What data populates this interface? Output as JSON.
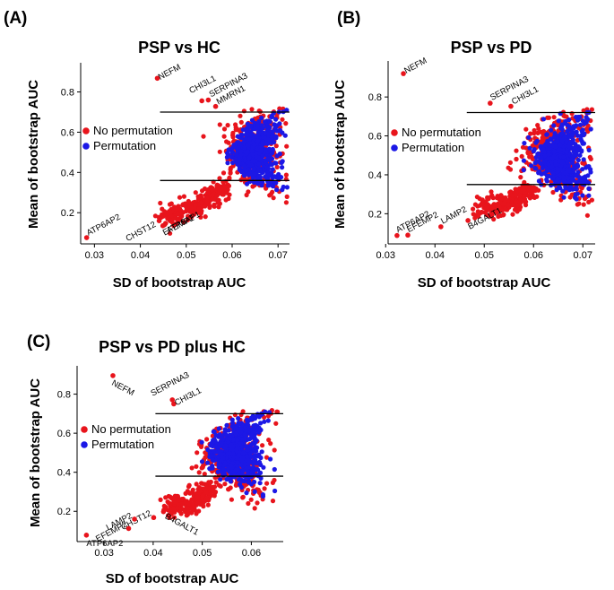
{
  "figure": {
    "point_colors": {
      "no_permutation": "#e8141c",
      "permutation": "#1c18e6"
    },
    "line_color": "#000000"
  },
  "chart_data": [
    {
      "type": "scatter",
      "panel_label": "(A)",
      "title": "PSP vs HC",
      "xlabel": "SD of bootstrap AUC",
      "ylabel": "Mean of bootstrap AUC",
      "xlim": [
        0.027,
        0.0725
      ],
      "ylim": [
        0.045,
        0.945
      ],
      "xticks": [
        {
          "v": 0.03,
          "label": "0.03"
        },
        {
          "v": 0.04,
          "label": "0.04"
        },
        {
          "v": 0.05,
          "label": "0.05"
        },
        {
          "v": 0.06,
          "label": "0.06"
        },
        {
          "v": 0.07,
          "label": "0.07"
        }
      ],
      "yticks": [
        {
          "v": 0.2,
          "label": "0.2"
        },
        {
          "v": 0.4,
          "label": "0.4"
        },
        {
          "v": 0.6,
          "label": "0.6"
        },
        {
          "v": 0.8,
          "label": "0.8"
        }
      ],
      "hlines": [
        0.7,
        0.36
      ],
      "legend": {
        "position": "left-middle",
        "items": [
          {
            "label": "No permutation",
            "color_key": "no_permutation"
          },
          {
            "label": "Permutation",
            "color_key": "permutation"
          }
        ]
      },
      "cloud": {
        "no_permutation": {
          "tail": [
            [
              0.0455,
              0.182
            ],
            [
              0.048,
              0.196
            ],
            [
              0.051,
              0.222
            ],
            [
              0.054,
              0.252
            ],
            [
              0.0565,
              0.29
            ],
            [
              0.0585,
              0.335
            ]
          ],
          "center": [
            0.064,
            0.51
          ],
          "spread": [
            0.0036,
            0.105
          ],
          "n": 640
        },
        "permutation": {
          "center": [
            0.0645,
            0.5
          ],
          "spread": [
            0.0023,
            0.085
          ],
          "n": 560
        }
      },
      "annotated_points": [
        {
          "label": "NEFM",
          "x": 0.0437,
          "y": 0.868,
          "rot": -28,
          "anchor": "start",
          "dx": 3,
          "dy": 2
        },
        {
          "label": "CHI3L1",
          "x": 0.0534,
          "y": 0.756,
          "rot": -28,
          "anchor": "start",
          "dx": -12,
          "dy": -8
        },
        {
          "label": "SERPINA3",
          "x": 0.0548,
          "y": 0.76,
          "rot": -28,
          "anchor": "start",
          "dx": 3,
          "dy": -3
        },
        {
          "label": "MMRN1",
          "x": 0.0564,
          "y": 0.728,
          "rot": -28,
          "anchor": "start",
          "dx": 3,
          "dy": -2
        },
        {
          "label": "ATP6AP2",
          "x": 0.0283,
          "y": 0.076,
          "rot": -28,
          "anchor": "start",
          "dx": 2,
          "dy": -2
        },
        {
          "label": "CHST12",
          "x": 0.0441,
          "y": 0.16,
          "rot": -28,
          "anchor": "end",
          "dx": -3,
          "dy": 6
        },
        {
          "label": "ATP6AP1",
          "x": 0.0455,
          "y": 0.147,
          "rot": -28,
          "anchor": "start",
          "dx": 3,
          "dy": 11
        },
        {
          "label": "EFEMP2",
          "x": 0.0449,
          "y": 0.135,
          "rot": -28,
          "anchor": "start",
          "dx": 2,
          "dy": 11
        }
      ]
    },
    {
      "type": "scatter",
      "panel_label": "(B)",
      "title": "PSP vs PD",
      "xlabel": "SD of bootstrap AUC",
      "ylabel": "Mean of bootstrap AUC",
      "xlim": [
        0.0305,
        0.0725
      ],
      "ylim": [
        0.045,
        0.985
      ],
      "xticks": [
        {
          "v": 0.03,
          "label": "0.03"
        },
        {
          "v": 0.04,
          "label": "0.04"
        },
        {
          "v": 0.05,
          "label": "0.05"
        },
        {
          "v": 0.06,
          "label": "0.06"
        },
        {
          "v": 0.07,
          "label": "0.07"
        }
      ],
      "yticks": [
        {
          "v": 0.2,
          "label": "0.2"
        },
        {
          "v": 0.4,
          "label": "0.4"
        },
        {
          "v": 0.6,
          "label": "0.6"
        },
        {
          "v": 0.8,
          "label": "0.8"
        }
      ],
      "hlines": [
        0.72,
        0.35
      ],
      "legend": {
        "position": "left-middle",
        "items": [
          {
            "label": "No permutation",
            "color_key": "no_permutation"
          },
          {
            "label": "Permutation",
            "color_key": "permutation"
          }
        ]
      },
      "cloud": {
        "no_permutation": {
          "tail": [
            [
              0.0495,
              0.23
            ],
            [
              0.052,
              0.238
            ],
            [
              0.055,
              0.256
            ],
            [
              0.0575,
              0.29
            ],
            [
              0.059,
              0.33
            ]
          ],
          "center": [
            0.064,
            0.5
          ],
          "spread": [
            0.0035,
            0.11
          ],
          "n": 640
        },
        "permutation": {
          "center": [
            0.0648,
            0.49
          ],
          "spread": [
            0.0024,
            0.09
          ],
          "n": 560
        }
      },
      "annotated_points": [
        {
          "label": "NEFM",
          "x": 0.0336,
          "y": 0.92,
          "rot": -28,
          "anchor": "start",
          "dx": 3,
          "dy": 0
        },
        {
          "label": "SERPINA3",
          "x": 0.0512,
          "y": 0.768,
          "rot": -28,
          "anchor": "start",
          "dx": 2,
          "dy": -3
        },
        {
          "label": "CHI3L1",
          "x": 0.0554,
          "y": 0.752,
          "rot": -28,
          "anchor": "start",
          "dx": 3,
          "dy": -2
        },
        {
          "label": "ATP6AP2",
          "x": 0.0323,
          "y": 0.088,
          "rot": -28,
          "anchor": "start",
          "dx": 1,
          "dy": -3
        },
        {
          "label": "EFEMP2",
          "x": 0.0345,
          "y": 0.09,
          "rot": -28,
          "anchor": "start",
          "dx": 1,
          "dy": -3
        },
        {
          "label": "LAMP2",
          "x": 0.0412,
          "y": 0.133,
          "rot": -28,
          "anchor": "start",
          "dx": 2,
          "dy": -3
        },
        {
          "label": "B4GALT1",
          "x": 0.0467,
          "y": 0.165,
          "rot": -28,
          "anchor": "start",
          "dx": 2,
          "dy": 10
        }
      ],
      "extra_points": [
        [
          0.0478,
          0.198
        ],
        [
          0.0488,
          0.186
        ],
        [
          0.0481,
          0.178
        ]
      ]
    },
    {
      "type": "scatter",
      "panel_label": "(C)",
      "title": "PSP vs PD plus HC",
      "xlabel": "SD of bootstrap AUC",
      "ylabel": "Mean of bootstrap AUC",
      "xlim": [
        0.0245,
        0.0665
      ],
      "ylim": [
        0.045,
        0.945
      ],
      "xticks": [
        {
          "v": 0.03,
          "label": "0.03"
        },
        {
          "v": 0.04,
          "label": "0.04"
        },
        {
          "v": 0.05,
          "label": "0.05"
        },
        {
          "v": 0.06,
          "label": "0.06"
        }
      ],
      "yticks": [
        {
          "v": 0.2,
          "label": "0.2"
        },
        {
          "v": 0.4,
          "label": "0.4"
        },
        {
          "v": 0.6,
          "label": "0.6"
        },
        {
          "v": 0.8,
          "label": "0.8"
        }
      ],
      "hlines": [
        0.7,
        0.38
      ],
      "legend": {
        "position": "left-middle",
        "items": [
          {
            "label": "No permutation",
            "color_key": "no_permutation"
          },
          {
            "label": "Permutation",
            "color_key": "permutation"
          }
        ]
      },
      "cloud": {
        "no_permutation": {
          "tail": [
            [
              0.0428,
              0.225
            ],
            [
              0.045,
              0.23
            ],
            [
              0.048,
              0.25
            ],
            [
              0.05,
              0.285
            ],
            [
              0.0515,
              0.33
            ]
          ],
          "center": [
            0.0555,
            0.49
          ],
          "spread": [
            0.0032,
            0.105
          ],
          "n": 620
        },
        "permutation": {
          "center": [
            0.0562,
            0.5
          ],
          "spread": [
            0.0023,
            0.085
          ],
          "n": 560
        }
      },
      "annotated_points": [
        {
          "label": "NEFM",
          "x": 0.0318,
          "y": 0.895,
          "rot": 28,
          "anchor": "start",
          "dx": -2,
          "dy": 10
        },
        {
          "label": "SERPINA3",
          "x": 0.0439,
          "y": 0.771,
          "rot": -28,
          "anchor": "start",
          "dx": -22,
          "dy": -4
        },
        {
          "label": "CHI3L1",
          "x": 0.0442,
          "y": 0.75,
          "rot": -28,
          "anchor": "start",
          "dx": 3,
          "dy": 2
        },
        {
          "label": "CHST12",
          "x": 0.0401,
          "y": 0.168,
          "rot": -28,
          "anchor": "end",
          "dx": -2,
          "dy": -3
        },
        {
          "label": "LAMP2",
          "x": 0.0362,
          "y": 0.16,
          "rot": -28,
          "anchor": "end",
          "dx": -2,
          "dy": -2
        },
        {
          "label": "EFEMP2",
          "x": 0.035,
          "y": 0.112,
          "rot": -28,
          "anchor": "end",
          "dx": -1,
          "dy": -3
        },
        {
          "label": "ATP6AP2",
          "x": 0.0264,
          "y": 0.078,
          "rot": 0,
          "anchor": "start",
          "dx": 0,
          "dy": 12
        },
        {
          "label": "B4GALT1",
          "x": 0.0421,
          "y": 0.198,
          "rot": 28,
          "anchor": "start",
          "dx": 1,
          "dy": 7
        }
      ]
    }
  ]
}
